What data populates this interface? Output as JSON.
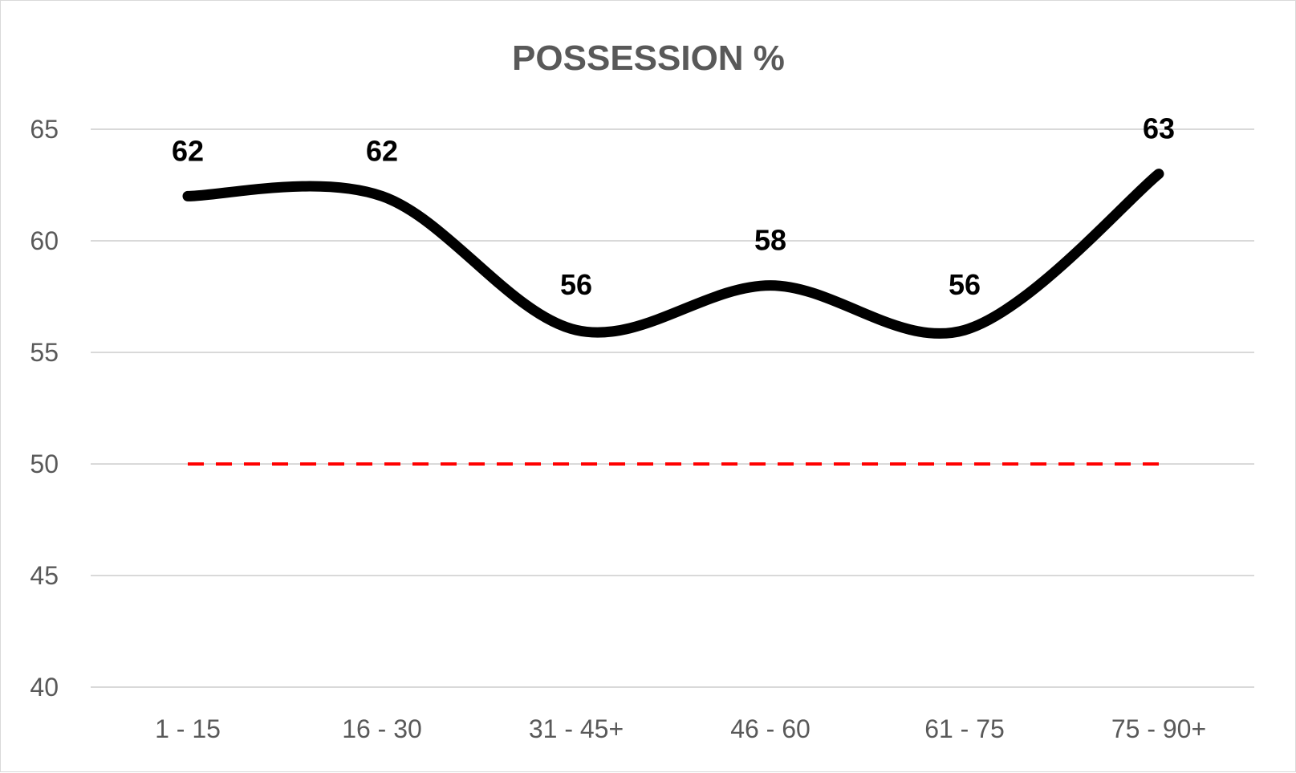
{
  "chart_data": {
    "type": "line",
    "title": "POSSESSION %",
    "categories": [
      "1 - 15",
      "16 - 30",
      "31 - 45+",
      "46 - 60",
      "61 - 75",
      "75 - 90+"
    ],
    "series": [
      {
        "values": [
          62,
          62,
          56,
          58,
          56,
          63
        ],
        "color": "#000000",
        "style": "smooth",
        "data_labels": true
      },
      {
        "values": [
          50,
          50,
          50,
          50,
          50,
          50
        ],
        "color": "#ff0000",
        "style": "dashed",
        "data_labels": false
      }
    ],
    "ylim": [
      40,
      65
    ],
    "yticks": [
      40,
      45,
      50,
      55,
      60,
      65
    ],
    "grid": true,
    "gridline_color": "#d9d9d9",
    "text_color": "#595959",
    "legend": "none"
  }
}
